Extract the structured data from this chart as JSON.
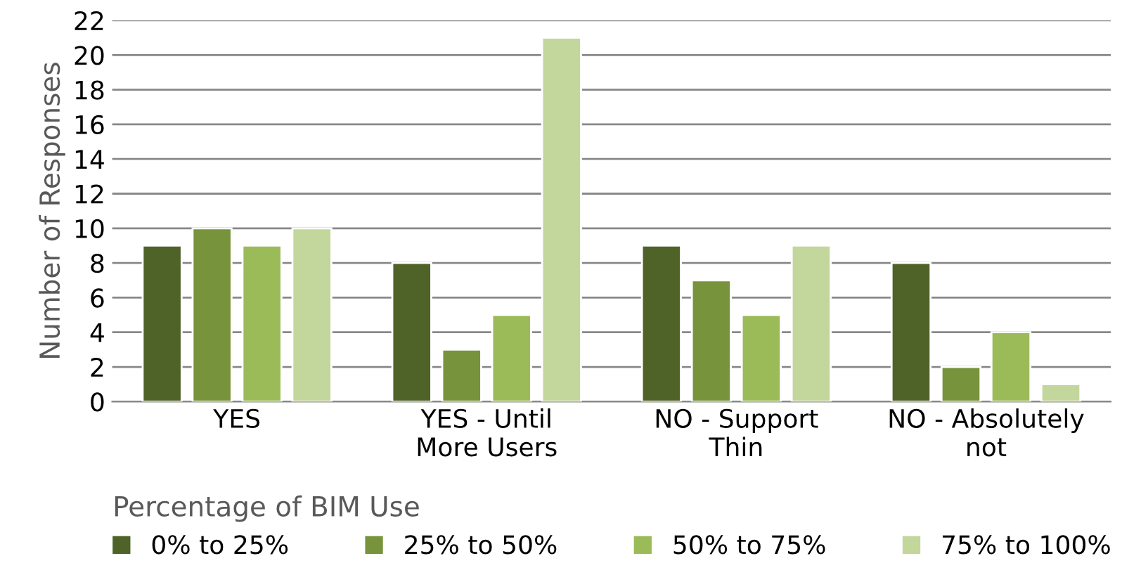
{
  "chart_data": {
    "type": "bar",
    "ylabel": "Number of Responses",
    "legend_title": "Percentage of BIM Use",
    "categories": [
      "YES",
      "YES - Until\nMore Users",
      "NO - Support\nThin",
      "NO - Absolutely\nnot"
    ],
    "series": [
      {
        "name": "0% to 25%",
        "color": "#4f6228",
        "values": [
          9,
          8,
          9,
          8
        ]
      },
      {
        "name": "25% to 50%",
        "color": "#77933c",
        "values": [
          10,
          3,
          7,
          2
        ]
      },
      {
        "name": "50% to 75%",
        "color": "#9bbb59",
        "values": [
          9,
          5,
          5,
          4
        ]
      },
      {
        "name": "75% to 100%",
        "color": "#c3d69b",
        "values": [
          10,
          21,
          9,
          1
        ]
      }
    ],
    "ylim": [
      0,
      22
    ],
    "yticks": [
      0,
      2,
      4,
      6,
      8,
      10,
      12,
      14,
      16,
      18,
      20,
      22
    ],
    "grid": "y",
    "legend": "bottom"
  }
}
